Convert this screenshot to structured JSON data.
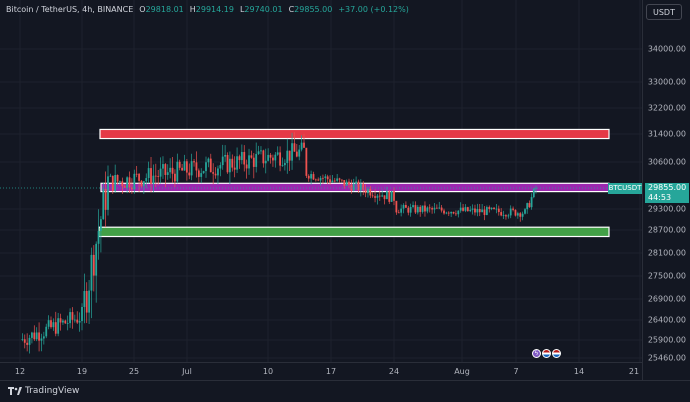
{
  "legend": {
    "symbol": "Bitcoin / TetherUS, 4h, BINANCE",
    "open_label": "O",
    "open": "29818.01",
    "high_label": "H",
    "high": "29914.19",
    "low_label": "L",
    "low": "29740.01",
    "close_label": "C",
    "close": "29855.00",
    "change": "+37.00 (+0.12%)"
  },
  "price_axis": {
    "currency": "USDT",
    "labels": [
      "34000.00",
      "33000.00",
      "32200.00",
      "31400.00",
      "30600.00",
      "29300.00",
      "28700.00",
      "28100.00",
      "27500.00",
      "26900.00",
      "26400.00",
      "25900.00",
      "25460.00"
    ],
    "current_price": "29855.00",
    "countdown": "44:53"
  },
  "symbol_tag": "BTCUSDT",
  "time_axis": {
    "labels": [
      "12",
      "19",
      "25",
      "Jul",
      "10",
      "17",
      "24",
      "Aug",
      "7",
      "14",
      "21"
    ]
  },
  "footer": {
    "brand": "TradingView"
  },
  "colors": {
    "up": "#26a69a",
    "down": "#ef5350",
    "resistance": "#e53946",
    "pivot": "#9c27b0",
    "support": "#43a047",
    "background": "#131722"
  },
  "zones": [
    {
      "name": "resistance",
      "top": 31540,
      "bottom": 31270
    },
    {
      "name": "pivot",
      "top": 29990,
      "bottom": 29760
    },
    {
      "name": "support",
      "top": 28780,
      "bottom": 28530
    }
  ],
  "chart_data": {
    "type": "candlestick",
    "symbol": "BTCUSDT",
    "timeframe": "4h",
    "x_ticks": [
      "12",
      "19",
      "25",
      "Jul",
      "10",
      "17",
      "24",
      "Aug",
      "7",
      "14",
      "21"
    ],
    "ylim": [
      25300,
      34700
    ],
    "segments": [
      {
        "from": "12 Jun",
        "to": "19 Jun",
        "start": 25900,
        "end": 26500,
        "low": 25200,
        "high": 26800
      },
      {
        "from": "19 Jun",
        "to": "22 Jun",
        "start": 26500,
        "end": 30000,
        "low": 26300,
        "high": 30500
      },
      {
        "from": "22 Jun",
        "to": "14 Jul",
        "start": 30000,
        "end": 30900,
        "low": 29700,
        "high": 31800
      },
      {
        "from": "14 Jul",
        "to": "24 Jul",
        "start": 30300,
        "end": 29600,
        "low": 29300,
        "high": 30400
      },
      {
        "from": "24 Jul",
        "to": "8 Aug",
        "start": 29300,
        "end": 29200,
        "low": 28600,
        "high": 29500
      },
      {
        "from": "8 Aug",
        "to": "9 Aug",
        "start": 29200,
        "end": 29855,
        "low": 29100,
        "high": 30050
      }
    ],
    "last_close": 29855.0
  },
  "event_icons": [
    "lightning-icon",
    "us-flag-icon",
    "us-flag-icon"
  ]
}
